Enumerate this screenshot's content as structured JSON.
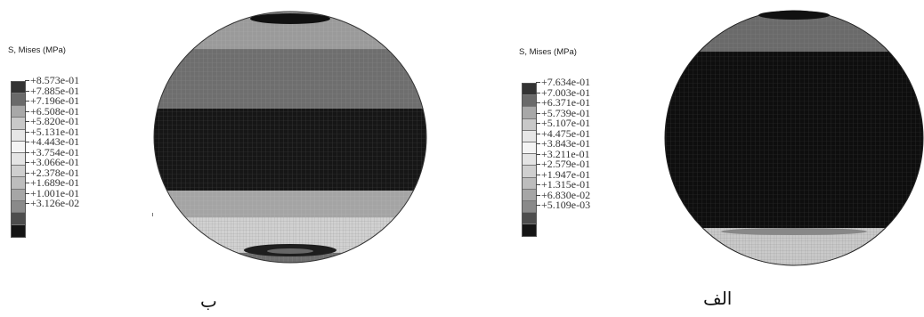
{
  "panels": {
    "b": {
      "legend_title": "S, Mises (MPa)",
      "legend_values": [
        "+8.573e-01",
        "+7.885e-01",
        "+7.196e-01",
        "+6.508e-01",
        "+5.820e-01",
        "+5.131e-01",
        "+4.443e-01",
        "+3.754e-01",
        "+3.066e-01",
        "+2.378e-01",
        "+1.689e-01",
        "+1.001e-01",
        "+3.126e-02"
      ],
      "caption": "ب"
    },
    "a": {
      "legend_title": "S, Mises (MPa)",
      "legend_values": [
        "+7.634e-01",
        "+7.003e-01",
        "+6.371e-01",
        "+5.739e-01",
        "+5.107e-01",
        "+4.475e-01",
        "+3.843e-01",
        "+3.211e-01",
        "+2.579e-01",
        "+1.947e-01",
        "+1.315e-01",
        "+6.830e-02",
        "+5.109e-03"
      ],
      "caption": "الف"
    }
  },
  "legend_colors": [
    "#333333",
    "#6a6a6a",
    "#a8a8a8",
    "#c8c8c8",
    "#e6e6e6",
    "#f4f4f4",
    "#e4e4e4",
    "#cfcfcf",
    "#bdbdbd",
    "#a6a6a6",
    "#8a8a8a",
    "#4d4d4d",
    "#141414"
  ]
}
